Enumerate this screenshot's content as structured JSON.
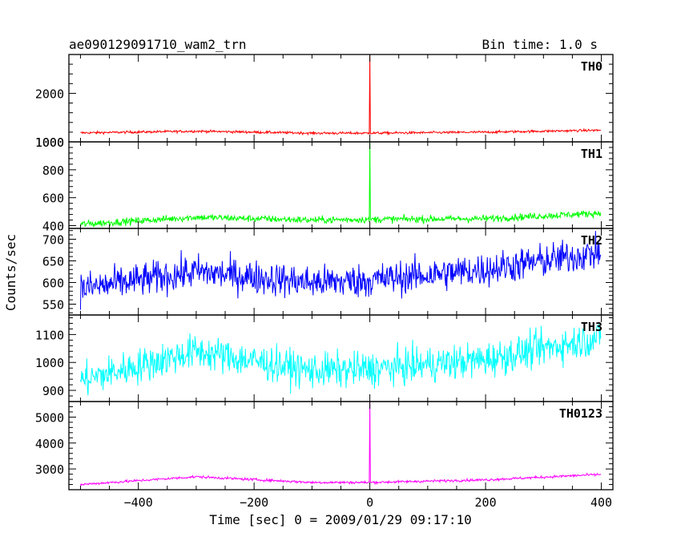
{
  "chart_data": {
    "type": "line",
    "title": "ae090129091710_wam2_trn",
    "subtitle": "Bin time: 1.0 s",
    "xlabel": "Time [sec] 0 = 2009/01/29 09:17:10",
    "ylabel": "Counts/sec",
    "x_ticks": [
      -400,
      -200,
      0,
      200,
      400
    ],
    "x_tick_labels": [
      "−400",
      "−200",
      "0",
      "200",
      "400"
    ],
    "xlim": [
      -520,
      420
    ],
    "x_data_range": [
      -500,
      399
    ],
    "panels": [
      {
        "name": "TH0",
        "color": "#ff0000",
        "ylim": [
          1000,
          2800
        ],
        "y_ticks": [
          1000,
          2000
        ],
        "y_tick_labels": [
          "1000",
          "2000"
        ],
        "baseline": [
          [
            -500,
            1185
          ],
          [
            -300,
            1220
          ],
          [
            -100,
            1180
          ],
          [
            0,
            1180
          ],
          [
            200,
            1200
          ],
          [
            400,
            1240
          ]
        ],
        "noise": 18,
        "spike": {
          "x": 0,
          "y": 2800
        }
      },
      {
        "name": "TH1",
        "color": "#00ff00",
        "ylim": [
          380,
          1000
        ],
        "y_ticks": [
          400,
          600,
          800,
          1000
        ],
        "y_tick_labels": [
          "400",
          "600",
          "800",
          "1000"
        ],
        "baseline": [
          [
            -500,
            410
          ],
          [
            -300,
            460
          ],
          [
            -100,
            440
          ],
          [
            0,
            445
          ],
          [
            200,
            450
          ],
          [
            400,
            490
          ]
        ],
        "noise": 18,
        "spike": {
          "x": 0,
          "y": 1000
        }
      },
      {
        "name": "TH2",
        "color": "#0000ff",
        "ylim": [
          525,
          725
        ],
        "y_ticks": [
          550,
          600,
          650,
          700
        ],
        "y_tick_labels": [
          "550",
          "600",
          "650",
          "700"
        ],
        "baseline": [
          [
            -500,
            585
          ],
          [
            -300,
            625
          ],
          [
            -100,
            600
          ],
          [
            0,
            605
          ],
          [
            200,
            630
          ],
          [
            400,
            670
          ]
        ],
        "noise": 28,
        "spike": null
      },
      {
        "name": "TH3",
        "color": "#00ffff",
        "ylim": [
          860,
          1170
        ],
        "y_ticks": [
          900,
          1000,
          1100
        ],
        "y_tick_labels": [
          "900",
          "1000",
          "1100"
        ],
        "baseline": [
          [
            -500,
            935
          ],
          [
            -300,
            1040
          ],
          [
            -100,
            970
          ],
          [
            0,
            975
          ],
          [
            200,
            1010
          ],
          [
            400,
            1090
          ]
        ],
        "noise": 45,
        "spike": null
      },
      {
        "name": "TH0123",
        "color": "#ff00ff",
        "ylim": [
          2200,
          5600
        ],
        "y_ticks": [
          3000,
          4000,
          5000
        ],
        "y_tick_labels": [
          "3000",
          "4000",
          "5000"
        ],
        "baseline": [
          [
            -500,
            2400
          ],
          [
            -300,
            2700
          ],
          [
            -100,
            2480
          ],
          [
            0,
            2480
          ],
          [
            200,
            2580
          ],
          [
            400,
            2790
          ]
        ],
        "noise": 35,
        "spike": {
          "x": 0,
          "y": 5600
        }
      }
    ],
    "grid": false,
    "legend": "none"
  }
}
